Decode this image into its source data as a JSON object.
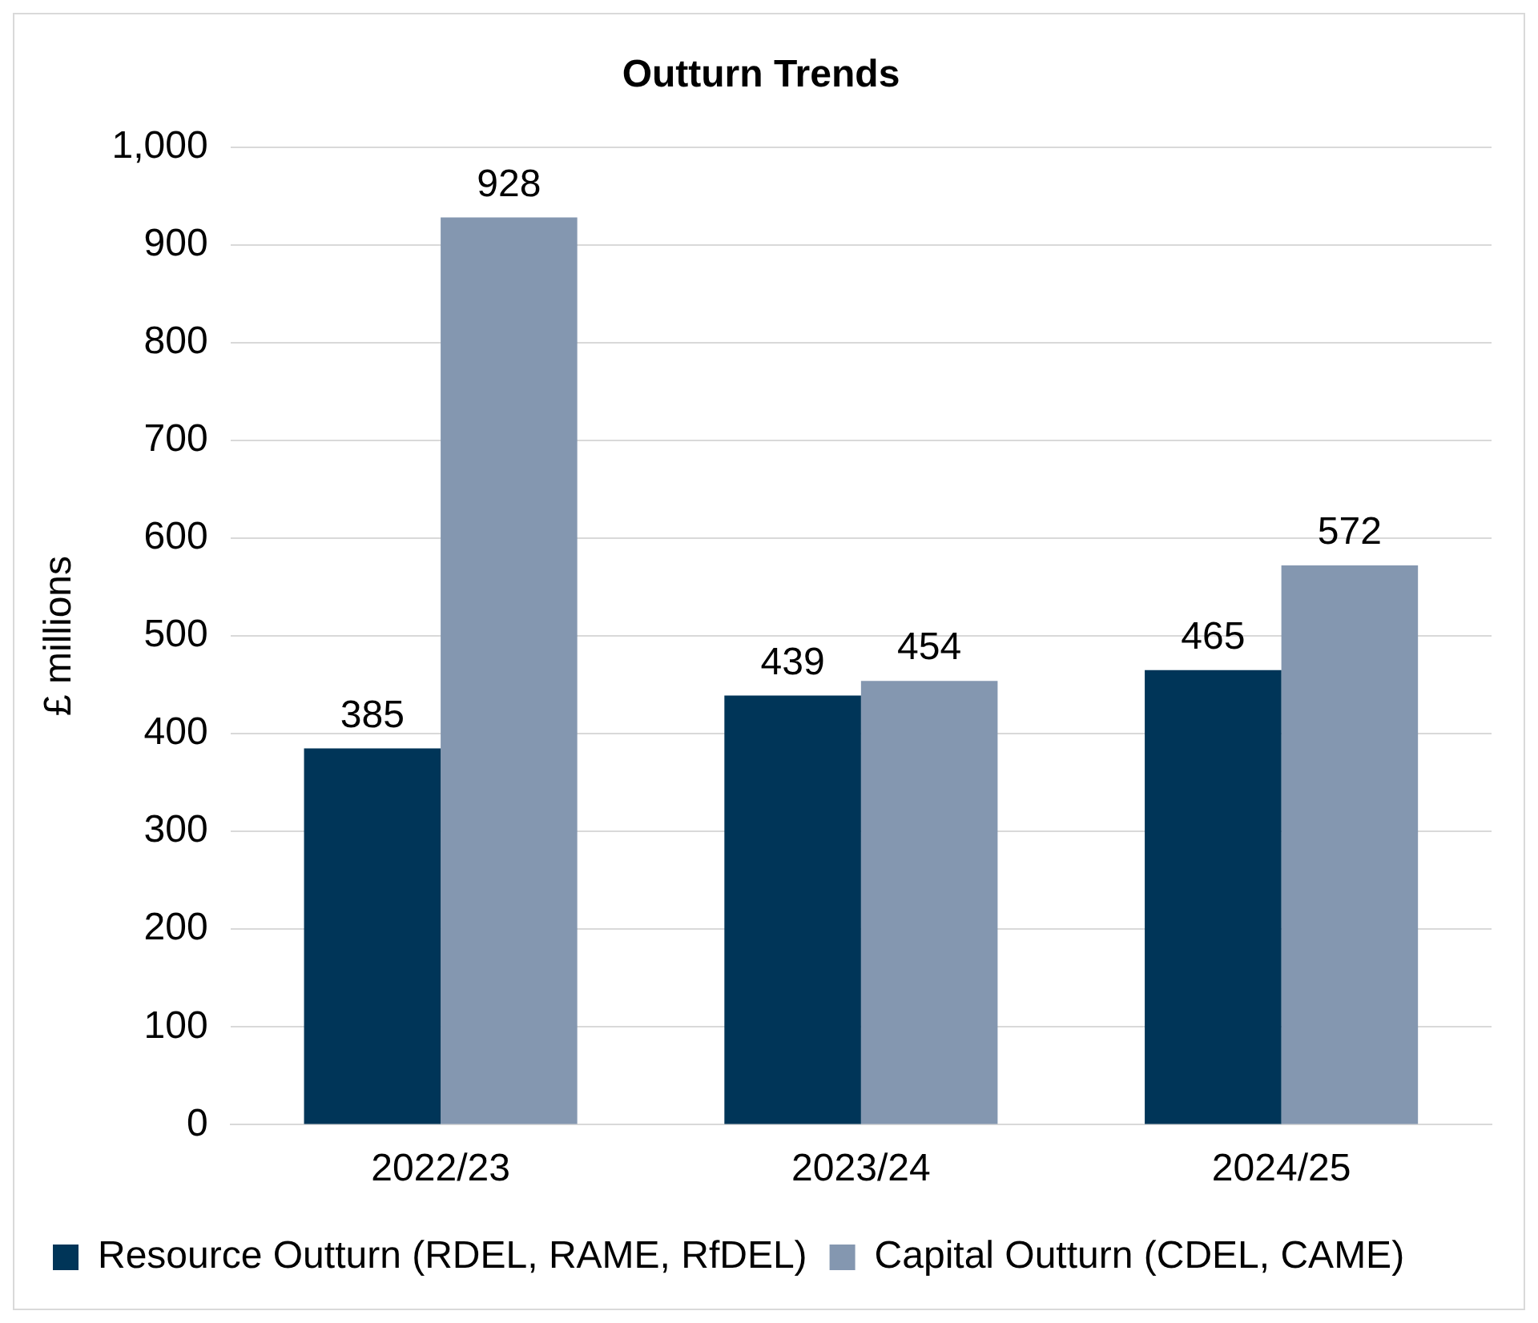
{
  "chart_data": {
    "type": "bar",
    "title": "Outturn Trends",
    "ylabel": "£ millions",
    "categories": [
      "2022/23",
      "2023/24",
      "2024/25"
    ],
    "series": [
      {
        "name": "Resource Outturn (RDEL, RAME, RfDEL)",
        "color": "#003558",
        "values": [
          385,
          439,
          465
        ]
      },
      {
        "name": "Capital Outturn (CDEL, CAME)",
        "color": "#8497b0",
        "values": [
          928,
          454,
          572
        ]
      }
    ],
    "ylim": [
      0,
      1000
    ],
    "yticks": [
      {
        "value": 0,
        "label": "0"
      },
      {
        "value": 100,
        "label": "100"
      },
      {
        "value": 200,
        "label": "200"
      },
      {
        "value": 300,
        "label": "300"
      },
      {
        "value": 400,
        "label": "400"
      },
      {
        "value": 500,
        "label": "500"
      },
      {
        "value": 600,
        "label": "600"
      },
      {
        "value": 700,
        "label": "700"
      },
      {
        "value": 800,
        "label": "800"
      },
      {
        "value": 900,
        "label": "900"
      },
      {
        "value": 1000,
        "label": "1,000"
      }
    ],
    "grid": "y",
    "legend": "bottom",
    "data_labels": true
  }
}
